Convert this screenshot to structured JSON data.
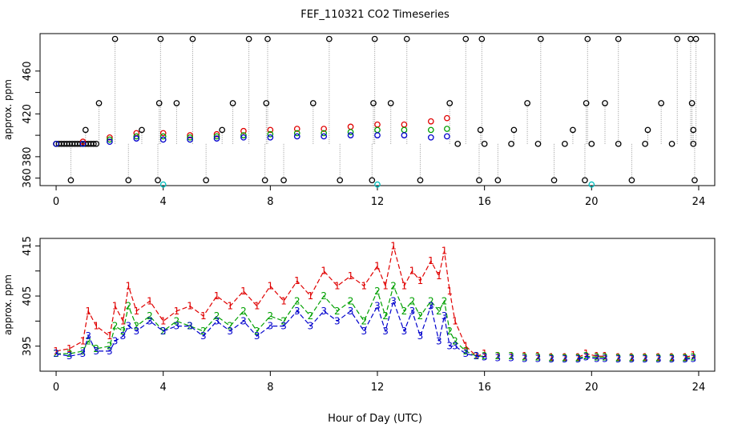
{
  "figure_title": "FEF_110321  CO2 Timeseries",
  "shared_xlabel": "Hour of Day (UTC)",
  "colors": {
    "black": "#000000",
    "red": "#e00000",
    "green": "#00a000",
    "blue": "#0000cc",
    "cyan": "#00c0c0",
    "gray": "#999999"
  },
  "chart_data": [
    {
      "type": "scatter",
      "title": "FEF_110321  CO2 Timeseries",
      "xlabel": "",
      "ylabel": "approx. ppm",
      "xlim": [
        -0.6,
        24.6
      ],
      "ylim": [
        353,
        495
      ],
      "xticks": [
        0,
        4,
        8,
        12,
        16,
        20,
        24
      ],
      "yticks": [
        360,
        380,
        400,
        420,
        440,
        460
      ],
      "ytick_labels_shown": [
        "360",
        "380",
        "420",
        "460"
      ],
      "marker": "open-circle",
      "series": [
        {
          "name": "black circles (base)",
          "color": "black",
          "x": [
            0,
            0.1,
            0.2,
            0.3,
            0.4,
            0.5,
            0.6,
            0.7,
            0.8,
            0.9,
            1.0,
            1.1,
            1.2,
            1.3,
            1.4,
            1.5,
            15,
            16,
            17,
            18,
            19,
            20,
            21,
            22,
            23,
            23.8
          ],
          "y": [
            392,
            392,
            392,
            392,
            392,
            392,
            392,
            392,
            392,
            392,
            392,
            392,
            392,
            392,
            392,
            392,
            392,
            392,
            392,
            392,
            392,
            392,
            392,
            392,
            392,
            392
          ]
        },
        {
          "name": "black circles (spikes)",
          "color": "black",
          "x": [
            0.55,
            1.1,
            1.6,
            2.2,
            2.7,
            3.2,
            3.8,
            3.85,
            3.9,
            4.5,
            5.1,
            5.6,
            6.2,
            6.6,
            7.2,
            7.8,
            7.85,
            7.9,
            8.5,
            9.6,
            10.2,
            10.6,
            11.8,
            11.85,
            11.9,
            12.5,
            13.1,
            13.6,
            14.7,
            15.3,
            15.8,
            15.85,
            15.9,
            16.5,
            17.1,
            17.6,
            18.1,
            18.6,
            19.3,
            19.75,
            19.8,
            19.85,
            20.5,
            21.0,
            21.5,
            22.1,
            22.6,
            23.2,
            23.7,
            23.75,
            23.8,
            23.85,
            23.9
          ],
          "y": [
            358,
            405,
            430,
            490,
            358,
            405,
            358,
            430,
            490,
            430,
            490,
            358,
            405,
            430,
            490,
            358,
            430,
            490,
            358,
            430,
            490,
            358,
            358,
            430,
            490,
            430,
            490,
            358,
            430,
            490,
            358,
            405,
            490,
            358,
            405,
            430,
            490,
            358,
            405,
            358,
            430,
            490,
            430,
            490,
            358,
            405,
            430,
            490,
            490,
            430,
            405,
            358,
            490
          ]
        },
        {
          "name": "red circles",
          "color": "red",
          "x": [
            0,
            1,
            2,
            3,
            4,
            5,
            6,
            7,
            8,
            9,
            10,
            11,
            12,
            13,
            14,
            14.6
          ],
          "y": [
            392,
            394,
            398,
            402,
            402,
            400,
            401,
            404,
            405,
            406,
            406,
            408,
            410,
            410,
            413,
            416
          ]
        },
        {
          "name": "green circles",
          "color": "green",
          "x": [
            0,
            1,
            2,
            3,
            4,
            5,
            6,
            7,
            8,
            9,
            10,
            11,
            12,
            13,
            14,
            14.6
          ],
          "y": [
            392,
            392,
            396,
            399,
            399,
            398,
            399,
            400,
            401,
            402,
            402,
            403,
            405,
            405,
            405,
            406
          ]
        },
        {
          "name": "blue circles",
          "color": "blue",
          "x": [
            0,
            1,
            2,
            3,
            4,
            5,
            6,
            7,
            8,
            9,
            10,
            11,
            12,
            13,
            14,
            14.6
          ],
          "y": [
            392,
            392,
            394,
            397,
            396,
            396,
            397,
            398,
            398,
            399,
            399,
            400,
            400,
            400,
            398,
            399
          ]
        },
        {
          "name": "cyan circles",
          "color": "cyan",
          "x": [
            4.0,
            12.0,
            20.0
          ],
          "y": [
            354,
            354,
            354
          ]
        }
      ]
    },
    {
      "type": "line",
      "title": "",
      "xlabel": "Hour of Day (UTC)",
      "ylabel": "approx. ppm",
      "xlim": [
        -0.6,
        24.6
      ],
      "ylim": [
        390,
        416.5
      ],
      "xticks": [
        0,
        4,
        8,
        12,
        16,
        20,
        24
      ],
      "yticks": [
        395,
        400,
        405,
        410,
        415
      ],
      "ytick_labels_shown": [
        "395",
        "405",
        "415"
      ],
      "marker": "digit",
      "series": [
        {
          "name": "1",
          "label": "1",
          "color": "red",
          "x": [
            0,
            0.5,
            1.0,
            1.2,
            1.5,
            2.0,
            2.2,
            2.5,
            2.7,
            3.0,
            3.5,
            4.0,
            4.5,
            5.0,
            5.5,
            6.0,
            6.5,
            7.0,
            7.5,
            8.0,
            8.5,
            9.0,
            9.5,
            10.0,
            10.5,
            11.0,
            11.5,
            12.0,
            12.3,
            12.6,
            13.0,
            13.3,
            13.6,
            14.0,
            14.3,
            14.5,
            14.7,
            14.9,
            15.3,
            15.7,
            16.0,
            16.5,
            17.0,
            17.5,
            18.0,
            18.5,
            19.0,
            19.5,
            19.8,
            20.2,
            20.5,
            21.0,
            21.5,
            22.0,
            22.5,
            23.0,
            23.5,
            23.8
          ],
          "y": [
            394,
            394.5,
            396,
            402,
            399,
            397,
            403,
            400,
            407,
            402,
            404,
            400,
            402,
            403,
            401,
            405,
            403,
            406,
            403,
            407,
            404,
            408,
            405,
            410,
            407,
            409,
            407,
            411,
            407,
            415,
            407,
            410,
            408,
            412,
            409,
            414,
            406,
            400,
            395,
            393,
            393.5,
            393,
            393,
            393,
            393,
            392.8,
            392.8,
            392.8,
            393.5,
            393,
            393,
            392.8,
            392.8,
            392.8,
            392.8,
            392.8,
            392.8,
            393.2
          ]
        },
        {
          "name": "2",
          "label": "2",
          "color": "green",
          "x": [
            0,
            0.5,
            1.0,
            1.2,
            1.5,
            2.0,
            2.2,
            2.5,
            2.7,
            3.0,
            3.5,
            4.0,
            4.5,
            5.0,
            5.5,
            6.0,
            6.5,
            7.0,
            7.5,
            8.0,
            8.5,
            9.0,
            9.5,
            10.0,
            10.5,
            11.0,
            11.5,
            12.0,
            12.3,
            12.6,
            13.0,
            13.3,
            13.6,
            14.0,
            14.3,
            14.5,
            14.7,
            14.9,
            15.3,
            15.7,
            16.0,
            16.5,
            17.0,
            17.5,
            18.0,
            18.5,
            19.0,
            19.5,
            19.8,
            20.2,
            20.5,
            21.0,
            21.5,
            22.0,
            22.5,
            23.0,
            23.5,
            23.8
          ],
          "y": [
            393.5,
            393.5,
            394,
            396,
            394.5,
            395,
            399,
            398,
            403,
            399,
            401,
            398,
            400,
            399,
            398,
            401,
            399,
            402,
            398,
            401,
            400,
            404,
            401,
            405,
            402,
            404,
            400,
            406,
            401,
            407,
            402,
            404,
            401,
            404,
            402,
            404,
            398,
            396,
            394,
            393,
            393,
            393,
            393,
            392.8,
            392.8,
            392.6,
            392.6,
            392.6,
            393,
            392.8,
            392.8,
            392.6,
            392.6,
            392.6,
            392.6,
            392.6,
            392.6,
            392.8
          ]
        },
        {
          "name": "3",
          "label": "3",
          "color": "blue",
          "x": [
            0,
            0.5,
            1.0,
            1.2,
            1.5,
            2.0,
            2.2,
            2.5,
            2.7,
            3.0,
            3.5,
            4.0,
            4.5,
            5.0,
            5.5,
            6.0,
            6.5,
            7.0,
            7.5,
            8.0,
            8.5,
            9.0,
            9.5,
            10.0,
            10.5,
            11.0,
            11.5,
            12.0,
            12.3,
            12.6,
            13.0,
            13.3,
            13.6,
            14.0,
            14.3,
            14.5,
            14.7,
            14.9,
            15.3,
            15.7,
            16.0,
            16.5,
            17.0,
            17.5,
            18.0,
            18.5,
            19.0,
            19.5,
            19.8,
            20.2,
            20.5,
            21.0,
            21.5,
            22.0,
            22.5,
            23.0,
            23.5,
            23.8
          ],
          "y": [
            393.5,
            393,
            393.5,
            397,
            394,
            394,
            396,
            397,
            399,
            398,
            400,
            398,
            399,
            399,
            397,
            400,
            398,
            400,
            397,
            399,
            399,
            402,
            399,
            402,
            400,
            402,
            398,
            403,
            398,
            404,
            398,
            402,
            397,
            403,
            396,
            401,
            395,
            395,
            393.5,
            393,
            392.8,
            392.6,
            392.6,
            392.5,
            392.5,
            392.4,
            392.4,
            392.4,
            392.8,
            392.5,
            392.5,
            392.4,
            392.4,
            392.4,
            392.4,
            392.4,
            392.4,
            392.5
          ]
        }
      ]
    }
  ]
}
